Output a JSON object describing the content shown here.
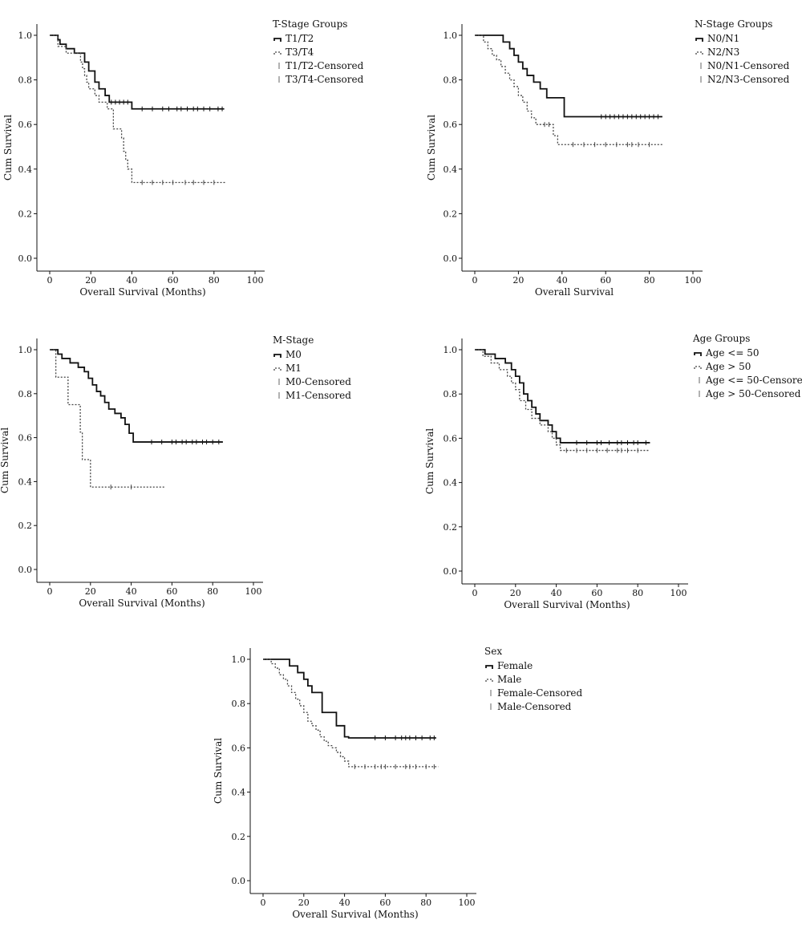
{
  "chart_data": [
    {
      "type": "line",
      "title": "",
      "xlabel": "Overall Survival (Months)",
      "ylabel": "Cum Survival",
      "xlim": [
        0,
        100
      ],
      "ylim": [
        0,
        1
      ],
      "xticks": [
        "0",
        "20",
        "40",
        "60",
        "80",
        "100"
      ],
      "yticks": [
        "0.0",
        "0.2",
        "0.4",
        "0.6",
        "0.8",
        "1.0"
      ],
      "grid": false,
      "legend": {
        "position": "right",
        "title": "T-Stage Groups",
        "entries": [
          "T1/T2",
          "T3/T4",
          "T1/T2-Censored",
          "T3/T4-Censored"
        ]
      },
      "series": [
        {
          "name": "T1/T2",
          "x": [
            0,
            4,
            5,
            8,
            12,
            17,
            19,
            22,
            24,
            27,
            29,
            40
          ],
          "y": [
            1.0,
            0.98,
            0.96,
            0.94,
            0.92,
            0.88,
            0.84,
            0.79,
            0.76,
            0.73,
            0.7,
            0.67
          ],
          "end": 85,
          "censored": [
            30,
            32,
            34,
            36,
            38,
            45,
            50,
            55,
            58,
            62,
            64,
            67,
            70,
            72,
            75,
            78,
            82,
            84
          ]
        },
        {
          "name": "T3/T4",
          "x": [
            0,
            4,
            8,
            15,
            16,
            17,
            18,
            19,
            22,
            24,
            28,
            31,
            35,
            36,
            37,
            38,
            40
          ],
          "y": [
            1.0,
            0.95,
            0.92,
            0.88,
            0.85,
            0.82,
            0.79,
            0.76,
            0.73,
            0.7,
            0.67,
            0.58,
            0.54,
            0.48,
            0.44,
            0.4,
            0.34
          ],
          "end": 86,
          "censored": [
            45,
            50,
            55,
            60,
            66,
            70,
            75,
            80
          ]
        }
      ]
    },
    {
      "type": "line",
      "title": "",
      "xlabel": "Overall Survival",
      "ylabel": "Cum Survival",
      "xlim": [
        0,
        100
      ],
      "ylim": [
        0,
        1
      ],
      "xticks": [
        "0",
        "20",
        "40",
        "60",
        "80",
        "100"
      ],
      "yticks": [
        "0.0",
        "0.2",
        "0.4",
        "0.6",
        "0.8",
        "1.0"
      ],
      "grid": false,
      "legend": {
        "position": "right",
        "title": "N-Stage Groups",
        "entries": [
          "N0/N1",
          "N2/N3",
          "N0/N1-Censored",
          "N2/N3-Censored"
        ]
      },
      "series": [
        {
          "name": "N0/N1",
          "x": [
            0,
            13,
            16,
            18,
            20,
            22,
            24,
            27,
            30,
            33,
            35,
            38,
            41
          ],
          "y": [
            1.0,
            0.97,
            0.94,
            0.91,
            0.88,
            0.85,
            0.82,
            0.79,
            0.76,
            0.72,
            0.72,
            0.72,
            0.635
          ],
          "end": 86,
          "censored": [
            58,
            60,
            62,
            64,
            66,
            68,
            70,
            72,
            74,
            76,
            78,
            80,
            82,
            84
          ]
        },
        {
          "name": "N2/N3",
          "x": [
            0,
            4,
            6,
            8,
            10,
            12,
            14,
            16,
            18,
            20,
            22,
            24,
            26,
            28,
            36,
            38
          ],
          "y": [
            1.0,
            0.97,
            0.94,
            0.91,
            0.89,
            0.86,
            0.83,
            0.8,
            0.77,
            0.73,
            0.7,
            0.66,
            0.63,
            0.6,
            0.55,
            0.51
          ],
          "end": 86,
          "censored": [
            32,
            34,
            45,
            50,
            55,
            60,
            65,
            70,
            72,
            75,
            80
          ]
        }
      ]
    },
    {
      "type": "line",
      "title": "",
      "xlabel": "Overall Survival (Months)",
      "ylabel": "Cum Survival",
      "xlim": [
        0,
        100
      ],
      "ylim": [
        0,
        1
      ],
      "xticks": [
        "0",
        "20",
        "40",
        "60",
        "80",
        "100"
      ],
      "yticks": [
        "0.0",
        "0.2",
        "0.4",
        "0.6",
        "0.8",
        "1.0"
      ],
      "grid": false,
      "legend": {
        "position": "right",
        "title": "M-Stage",
        "entries": [
          "M0",
          "M1",
          "M0-Censored",
          "M1-Censored"
        ]
      },
      "series": [
        {
          "name": "M0",
          "x": [
            0,
            4,
            6,
            10,
            14,
            17,
            19,
            21,
            23,
            25,
            27,
            29,
            32,
            35,
            37,
            39,
            41
          ],
          "y": [
            1.0,
            0.98,
            0.96,
            0.94,
            0.92,
            0.9,
            0.87,
            0.84,
            0.81,
            0.79,
            0.76,
            0.73,
            0.71,
            0.69,
            0.66,
            0.62,
            0.58
          ],
          "end": 85,
          "censored": [
            50,
            55,
            60,
            62,
            65,
            67,
            70,
            72,
            75,
            77,
            80,
            83
          ]
        },
        {
          "name": "M1",
          "x": [
            0,
            3,
            9,
            15,
            16,
            18,
            20
          ],
          "y": [
            1.0,
            0.875,
            0.75,
            0.625,
            0.5,
            0.5,
            0.375
          ],
          "end": 57,
          "censored": [
            30,
            40
          ]
        }
      ]
    },
    {
      "type": "line",
      "title": "",
      "xlabel": "Overall Survival (Months)",
      "ylabel": "Cum Survival",
      "xlim": [
        0,
        100
      ],
      "ylim": [
        0,
        1
      ],
      "xticks": [
        "0",
        "20",
        "40",
        "60",
        "80",
        "100"
      ],
      "yticks": [
        "0.0",
        "0.2",
        "0.4",
        "0.6",
        "0.8",
        "1.0"
      ],
      "grid": false,
      "legend": {
        "position": "right",
        "title": "Age Groups",
        "entries": [
          "Age <= 50",
          "Age > 50",
          "Age <= 50-Censored",
          "Age > 50-Censored"
        ]
      },
      "series": [
        {
          "name": "Age <= 50",
          "x": [
            0,
            5,
            10,
            15,
            18,
            20,
            22,
            24,
            26,
            28,
            30,
            32,
            36,
            38,
            40,
            42
          ],
          "y": [
            1.0,
            0.98,
            0.96,
            0.94,
            0.91,
            0.88,
            0.85,
            0.8,
            0.77,
            0.74,
            0.71,
            0.68,
            0.66,
            0.63,
            0.6,
            0.58
          ],
          "end": 86,
          "censored": [
            50,
            55,
            60,
            62,
            66,
            70,
            72,
            75,
            78,
            80,
            84
          ]
        },
        {
          "name": "Age > 50",
          "x": [
            0,
            4,
            8,
            12,
            16,
            18,
            20,
            22,
            25,
            28,
            32,
            36,
            38,
            40,
            42
          ],
          "y": [
            1.0,
            0.97,
            0.94,
            0.91,
            0.88,
            0.85,
            0.82,
            0.77,
            0.73,
            0.69,
            0.66,
            0.63,
            0.6,
            0.57,
            0.545
          ],
          "end": 86,
          "censored": [
            45,
            50,
            55,
            60,
            65,
            70,
            72,
            75,
            80
          ]
        }
      ]
    },
    {
      "type": "line",
      "title": "",
      "xlabel": "Overall Survival (Months)",
      "ylabel": "Cum Survival",
      "xlim": [
        0,
        100
      ],
      "ylim": [
        0,
        1
      ],
      "xticks": [
        "0",
        "20",
        "40",
        "60",
        "80",
        "100"
      ],
      "yticks": [
        "0.0",
        "0.2",
        "0.4",
        "0.6",
        "0.8",
        "1.0"
      ],
      "grid": false,
      "legend": {
        "position": "right",
        "title": "Sex",
        "entries": [
          "Female",
          "Male",
          "Female-Censored",
          "Male-Censored"
        ]
      },
      "series": [
        {
          "name": "Female",
          "x": [
            0,
            13,
            17,
            20,
            22,
            24,
            29,
            36,
            40,
            42
          ],
          "y": [
            1.0,
            0.97,
            0.94,
            0.91,
            0.88,
            0.85,
            0.76,
            0.7,
            0.65,
            0.645
          ],
          "end": 85,
          "censored": [
            55,
            60,
            65,
            68,
            70,
            72,
            75,
            78,
            82,
            84
          ]
        },
        {
          "name": "Male",
          "x": [
            0,
            4,
            6,
            8,
            10,
            12,
            14,
            16,
            18,
            20,
            22,
            24,
            26,
            28,
            30,
            32,
            34,
            36,
            38,
            40,
            42
          ],
          "y": [
            1.0,
            0.98,
            0.96,
            0.93,
            0.91,
            0.88,
            0.85,
            0.82,
            0.79,
            0.76,
            0.72,
            0.7,
            0.68,
            0.65,
            0.63,
            0.61,
            0.6,
            0.58,
            0.56,
            0.54,
            0.515
          ],
          "end": 86,
          "censored": [
            45,
            50,
            55,
            58,
            60,
            65,
            70,
            72,
            75,
            80,
            84
          ]
        }
      ]
    }
  ]
}
